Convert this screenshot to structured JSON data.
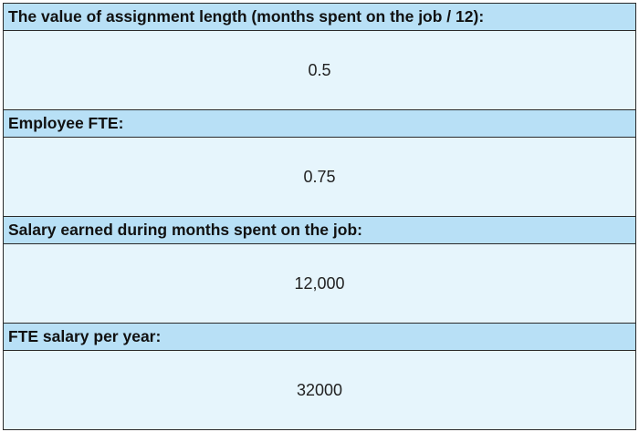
{
  "rows": [
    {
      "label": "The value of assignment length (months spent on the job / 12):",
      "value": "0.5"
    },
    {
      "label": "Employee FTE:",
      "value": "0.75"
    },
    {
      "label": "Salary earned during months spent on the job:",
      "value": "12,000"
    },
    {
      "label": "FTE salary per year:",
      "value": "32000"
    }
  ]
}
